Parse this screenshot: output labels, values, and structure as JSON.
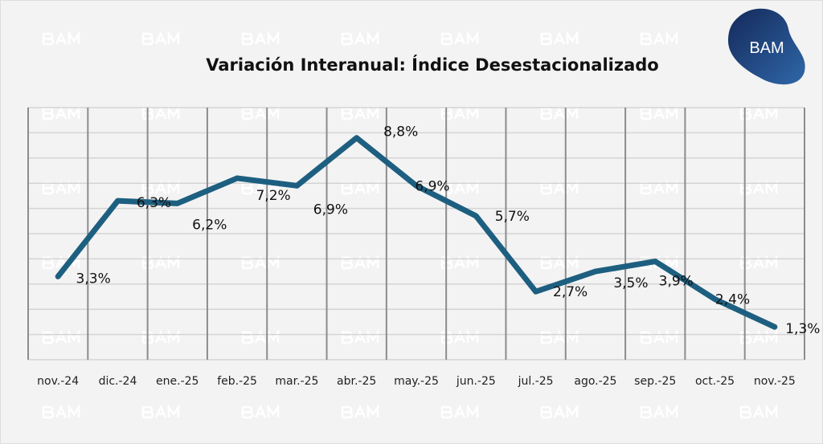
{
  "chart_data": {
    "type": "line",
    "title": "Variación Interanual: Índice Desestacionalizado",
    "categories": [
      "nov.-24",
      "dic.-24",
      "ene.-25",
      "feb.-25",
      "mar.-25",
      "abr.-25",
      "may.-25",
      "jun.-25",
      "jul.-25",
      "ago.-25",
      "sep.-25",
      "oct.-25",
      "nov.-25"
    ],
    "values": [
      3.3,
      6.3,
      6.2,
      7.2,
      6.9,
      8.8,
      6.9,
      5.7,
      2.7,
      3.5,
      3.9,
      2.4,
      1.3
    ],
    "data_labels": [
      "3,3%",
      "6,3%",
      "6,2%",
      "7,2%",
      "6,9%",
      "8,8%",
      "6,9%",
      "5,7%",
      "2,7%",
      "3,5%",
      "3,9%",
      "2,4%",
      "1,3%"
    ],
    "xlabel": "",
    "ylabel": "",
    "ylim": [
      0,
      10
    ],
    "grid": true,
    "line_color": "#1d5f80"
  },
  "logo": {
    "text": "BAM",
    "color": "#1e3a6e"
  },
  "watermark": "BAM"
}
